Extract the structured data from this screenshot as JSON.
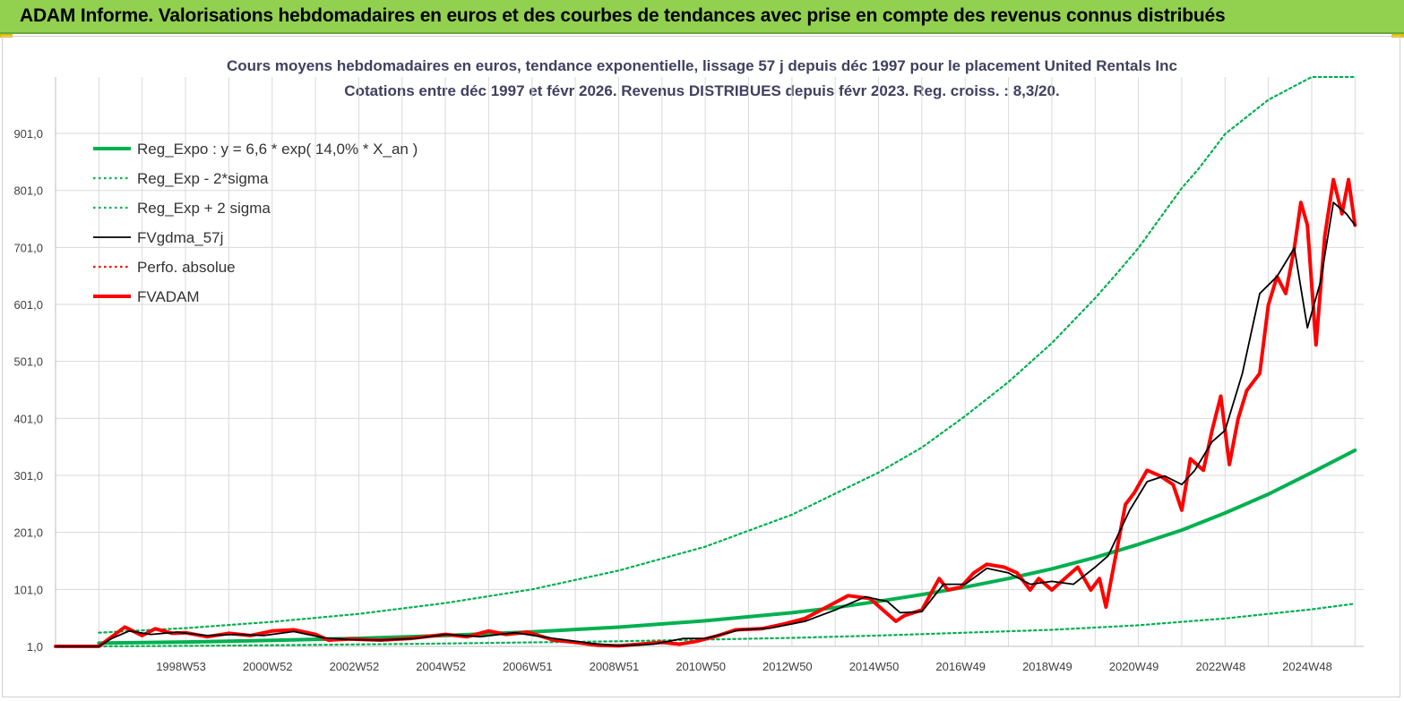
{
  "banner": {
    "title": "ADAM Informe. Valorisations hebdomadaires en euros et des courbes de tendances avec prise en compte des revenus connus distribués"
  },
  "chart_data": {
    "type": "line",
    "title": "Cours moyens hebdomadaires en euros, tendance exponentielle, lissage 57 j depuis déc 1997 pour le placement United Rentals Inc",
    "subtitle": "Cotations entre déc 1997 et févr 2026. Revenus DISTRIBUES depuis févr 2023. Reg. croiss. : 8,3/20.",
    "xlabel": "",
    "ylabel": "",
    "x_range": [
      1996.0,
      2026.2
    ],
    "ylim": [
      1,
      1000
    ],
    "y_ticks": [
      1,
      101,
      201,
      301,
      401,
      501,
      601,
      701,
      801,
      901
    ],
    "y_tick_labels": [
      "1,0",
      "101,0",
      "201,0",
      "301,0",
      "401,0",
      "501,0",
      "601,0",
      "701,0",
      "801,0",
      "901,0"
    ],
    "x_ticks": [
      1999.0,
      2001.0,
      2003.0,
      2005.0,
      2007.0,
      2009.0,
      2011.0,
      2013.0,
      2015.0,
      2017.0,
      2019.0,
      2021.0,
      2023.0,
      2025.0
    ],
    "x_tick_labels": [
      "1998W53",
      "2000W52",
      "2002W52",
      "2004W52",
      "2006W51",
      "2008W51",
      "2010W50",
      "2012W50",
      "2014W50",
      "2016W49",
      "2018W49",
      "2020W49",
      "2022W48",
      "2024W48"
    ],
    "grid": true,
    "legend_position": "top-left",
    "series": [
      {
        "name": "Reg_Expo : y = 6,6 * exp( 14,0% *  X_an )",
        "color": "#00b050",
        "style": "solid-thick",
        "x": [
          1997.0,
          1999.0,
          2001.0,
          2003.0,
          2005.0,
          2007.0,
          2009.0,
          2011.0,
          2013.0,
          2014.0,
          2015.0,
          2016.0,
          2017.0,
          2018.0,
          2019.0,
          2020.0,
          2021.0,
          2022.0,
          2023.0,
          2024.0,
          2025.0,
          2026.0
        ],
        "y": [
          6.6,
          8.7,
          11.5,
          15.2,
          20.0,
          26.4,
          34.8,
          46.0,
          60.0,
          69.0,
          80.0,
          92.0,
          105.0,
          120.0,
          137.0,
          157.0,
          180.0,
          205.0,
          235.0,
          268.0,
          306.0,
          345.0
        ]
      },
      {
        "name": "Reg_Exp - 2*sigma",
        "color": "#00b050",
        "style": "dotted",
        "x": [
          1997.0,
          1999.0,
          2001.0,
          2003.0,
          2005.0,
          2007.0,
          2009.0,
          2011.0,
          2013.0,
          2015.0,
          2017.0,
          2019.0,
          2021.0,
          2023.0,
          2024.0,
          2025.0,
          2026.0
        ],
        "y": [
          1.0,
          2.0,
          3.0,
          4.5,
          6.0,
          8.0,
          10.0,
          13.0,
          16.0,
          20.0,
          25.0,
          30.0,
          38.0,
          50.0,
          58.0,
          66.0,
          76.0
        ]
      },
      {
        "name": "Reg_Exp + 2 sigma",
        "color": "#00b050",
        "style": "dotted",
        "x": [
          1997.0,
          1999.0,
          2001.0,
          2003.0,
          2005.0,
          2007.0,
          2009.0,
          2011.0,
          2013.0,
          2015.0,
          2016.0,
          2017.0,
          2018.0,
          2019.0,
          2020.0,
          2020.5,
          2021.0,
          2022.0,
          2022.4,
          2023.0,
          2024.0,
          2025.0,
          2026.0
        ],
        "y": [
          25,
          33,
          44,
          58,
          77,
          101,
          134,
          176,
          232,
          306,
          350,
          405,
          465,
          533,
          612,
          655,
          700,
          805,
          840,
          900,
          960,
          1000,
          1000
        ]
      },
      {
        "name": "FVgdma_57j",
        "color": "#000000",
        "style": "solid",
        "x": [
          1996.0,
          1997.0,
          1997.3,
          1997.7,
          1998.2,
          1998.8,
          1999.5,
          2000.2,
          2000.8,
          2001.5,
          2002.2,
          2002.8,
          2003.5,
          2004.3,
          2005.0,
          2005.8,
          2006.6,
          2007.5,
          2008.4,
          2009.0,
          2009.8,
          2010.5,
          2011.0,
          2011.8,
          2012.5,
          2013.3,
          2014.0,
          2014.7,
          2015.2,
          2015.5,
          2016.0,
          2016.5,
          2017.0,
          2017.5,
          2018.0,
          2018.5,
          2019.0,
          2019.5,
          2020.0,
          2020.3,
          2020.8,
          2021.2,
          2021.6,
          2022.0,
          2022.3,
          2022.7,
          2023.0,
          2023.4,
          2023.8,
          2024.2,
          2024.6,
          2024.9,
          2025.2,
          2025.5,
          2025.8,
          2026.0
        ],
        "y": [
          1,
          1,
          15,
          28,
          22,
          26,
          20,
          22,
          20,
          27,
          16,
          13,
          12,
          15,
          22,
          18,
          25,
          15,
          6,
          2,
          5,
          15,
          15,
          30,
          33,
          45,
          65,
          88,
          80,
          60,
          62,
          110,
          110,
          138,
          130,
          110,
          115,
          110,
          140,
          160,
          240,
          290,
          300,
          285,
          310,
          360,
          380,
          480,
          620,
          650,
          700,
          560,
          640,
          780,
          760,
          740
        ]
      },
      {
        "name": "Perfo. absolue",
        "color": "#ff0000",
        "style": "dotted",
        "x": [],
        "y": []
      },
      {
        "name": "FVADAM",
        "color": "#ff0000",
        "style": "solid-thick",
        "x": [
          1996.0,
          1997.0,
          1997.3,
          1997.6,
          1998.0,
          1998.3,
          1998.7,
          1999.0,
          1999.5,
          2000.0,
          2000.5,
          2001.0,
          2001.5,
          2002.0,
          2002.3,
          2002.8,
          2003.5,
          2004.2,
          2005.0,
          2005.5,
          2006.0,
          2006.4,
          2006.9,
          2007.5,
          2008.0,
          2008.5,
          2009.0,
          2009.5,
          2010.0,
          2010.4,
          2010.8,
          2011.3,
          2011.7,
          2012.3,
          2012.8,
          2013.3,
          2013.8,
          2014.3,
          2014.8,
          2015.1,
          2015.4,
          2015.6,
          2016.0,
          2016.4,
          2016.6,
          2016.9,
          2017.2,
          2017.5,
          2017.9,
          2018.2,
          2018.5,
          2018.7,
          2019.0,
          2019.3,
          2019.6,
          2019.9,
          2020.1,
          2020.25,
          2020.4,
          2020.7,
          2020.9,
          2021.2,
          2021.5,
          2021.8,
          2022.0,
          2022.2,
          2022.5,
          2022.7,
          2022.9,
          2023.1,
          2023.3,
          2023.5,
          2023.8,
          2024.0,
          2024.2,
          2024.4,
          2024.6,
          2024.75,
          2024.9,
          2025.1,
          2025.3,
          2025.5,
          2025.7,
          2025.85,
          2026.0
        ],
        "y": [
          1,
          1,
          18,
          35,
          20,
          32,
          24,
          25,
          18,
          24,
          20,
          28,
          30,
          22,
          12,
          14,
          12,
          15,
          22,
          18,
          28,
          22,
          26,
          12,
          8,
          3,
          2,
          5,
          8,
          5,
          10,
          20,
          30,
          32,
          40,
          50,
          70,
          90,
          85,
          65,
          45,
          55,
          65,
          120,
          100,
          105,
          130,
          145,
          140,
          130,
          100,
          120,
          100,
          120,
          140,
          100,
          120,
          70,
          130,
          250,
          270,
          310,
          300,
          285,
          240,
          330,
          310,
          380,
          440,
          320,
          400,
          450,
          480,
          600,
          650,
          620,
          700,
          780,
          740,
          530,
          720,
          820,
          760,
          820,
          740
        ]
      }
    ]
  }
}
